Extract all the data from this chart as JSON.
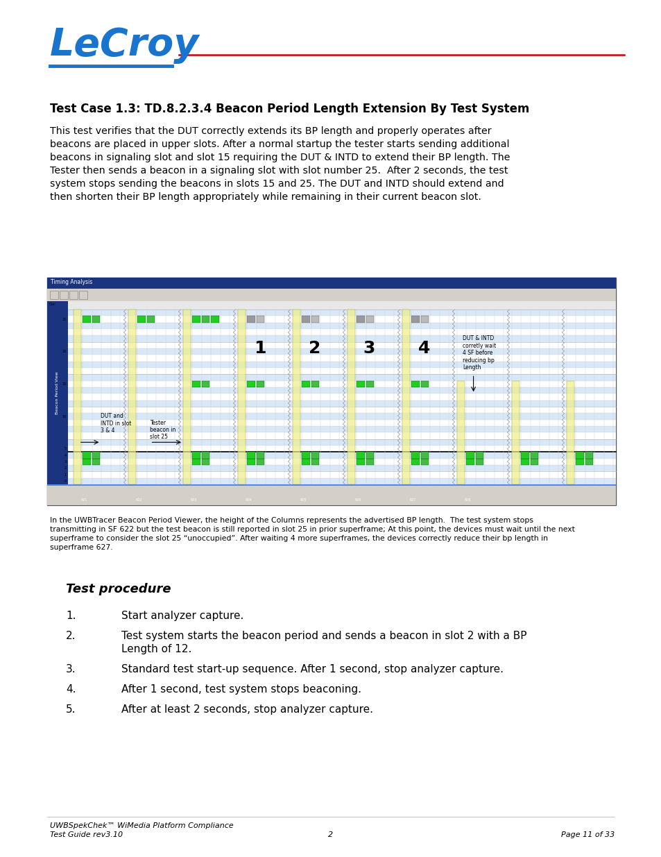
{
  "title": "Test Case 1.3: TD.8.2.3.4 Beacon Period Length Extension By Test System",
  "procedure_title": "Test procedure",
  "procedure_steps": [
    "Start analyzer capture.",
    "Test system starts the beacon period and sends a beacon in slot 2 with a BP\nLength of 12.",
    "Standard test start-up sequence. After 1 second, stop analyzer capture.",
    "After 1 second, test system stops beaconing.",
    "After at least 2 seconds, stop analyzer capture."
  ],
  "footer_left1": "UWBSpekChek™ WiMedia Platform Compliance",
  "footer_left2": "Test Guide rev3.10",
  "footer_center": "2",
  "footer_right": "Page 11 of 33",
  "logo_color": "#1874cd",
  "header_line_color": "#cc0000",
  "bg_color": "#ffffff",
  "body_lines": [
    "This test verifies that the DUT correctly extends its BP length and properly operates after",
    "beacons are placed in upper slots. After a normal startup the tester starts sending additional",
    "beacons in signaling slot and slot 15 requiring the DUT & INTD to extend their BP length. The",
    "Tester then sends a beacon in a signaling slot with slot number 25.  After 2 seconds, the test",
    "system stops sending the beacons in slots 15 and 25. The DUT and INTD should extend and",
    "then shorten their BP length appropriately while remaining in their current beacon slot."
  ],
  "caption_lines": [
    "In the UWBTracer Beacon Period Viewer, the height of the Columns represents the advertised BP length.  The test system stops",
    "transmitting in SF 622 but the test beacon is still reported in slot 25 in prior superframe; At this point, the devices must wait until the next",
    "superframe to consider the slot 25 “unoccupied”. After waiting 4 more superframes, the devices correctly reduce their bp length in",
    "superframe 627."
  ]
}
